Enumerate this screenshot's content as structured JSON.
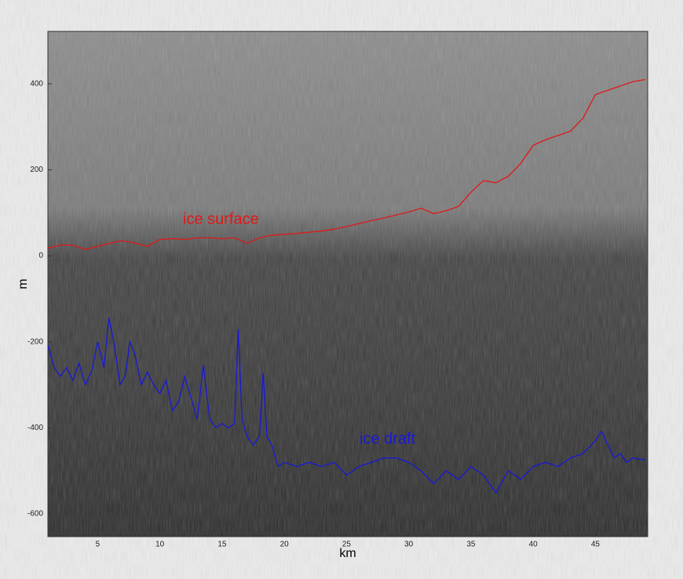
{
  "chart_data": {
    "type": "line",
    "xlabel": "km",
    "ylabel": "m",
    "xlim": [
      1,
      49.2
    ],
    "ylim": [
      -653,
      522
    ],
    "xticks": [
      5,
      10,
      15,
      20,
      25,
      30,
      35,
      40,
      45
    ],
    "yticks": [
      -600,
      -400,
      -200,
      0,
      200,
      400
    ],
    "series": [
      {
        "name": "ice surface",
        "color": "#e01818",
        "x": [
          1,
          2,
          3,
          4,
          5,
          6,
          7,
          8,
          9,
          10,
          11,
          12,
          13,
          14,
          15,
          16,
          17,
          18,
          19,
          20,
          21,
          22,
          23,
          24,
          25,
          26,
          27,
          28,
          29,
          30,
          31,
          32,
          33,
          34,
          35,
          36,
          37,
          38,
          39,
          40,
          41,
          42,
          43,
          44,
          45,
          46,
          47,
          48,
          49
        ],
        "values": [
          18,
          25,
          25,
          15,
          22,
          30,
          35,
          30,
          22,
          38,
          40,
          38,
          42,
          42,
          40,
          42,
          29,
          42,
          48,
          50,
          52,
          55,
          58,
          62,
          68,
          75,
          82,
          88,
          95,
          102,
          111,
          98,
          105,
          115,
          148,
          175,
          170,
          185,
          215,
          257,
          270,
          280,
          290,
          320,
          375,
          385,
          395,
          405,
          410
        ]
      },
      {
        "name": "ice draft",
        "color": "#1818d8",
        "x": [
          1,
          1.5,
          2,
          2.5,
          3,
          3.5,
          4,
          4.5,
          5,
          5.5,
          5.9,
          6.3,
          6.8,
          7.2,
          7.6,
          8,
          8.5,
          9,
          9.5,
          10,
          10.5,
          11,
          11.5,
          12,
          12.5,
          13,
          13.5,
          14,
          14.5,
          15,
          15.5,
          16,
          16.3,
          16.6,
          17,
          17.5,
          18,
          18.3,
          18.6,
          19,
          19.5,
          20,
          21,
          22,
          23,
          24,
          25,
          26,
          27,
          28,
          29,
          30,
          31,
          32,
          33,
          34,
          35,
          36,
          37,
          38,
          39,
          40,
          41,
          42,
          43,
          44,
          45,
          45.5,
          46,
          46.5,
          47,
          47.5,
          48,
          49
        ],
        "values": [
          -208,
          -260,
          -280,
          -260,
          -290,
          -250,
          -300,
          -270,
          -200,
          -260,
          -144,
          -200,
          -300,
          -280,
          -200,
          -230,
          -300,
          -270,
          -300,
          -320,
          -290,
          -360,
          -340,
          -280,
          -330,
          -380,
          -253,
          -380,
          -400,
          -390,
          -400,
          -390,
          -171,
          -380,
          -420,
          -440,
          -420,
          -272,
          -420,
          -440,
          -490,
          -480,
          -490,
          -480,
          -490,
          -480,
          -510,
          -490,
          -480,
          -470,
          -470,
          -480,
          -500,
          -530,
          -500,
          -520,
          -490,
          -510,
          -551,
          -500,
          -520,
          -490,
          -480,
          -490,
          -470,
          -460,
          -430,
          -408,
          -440,
          -470,
          -460,
          -480,
          -470,
          -475
        ]
      }
    ]
  }
}
